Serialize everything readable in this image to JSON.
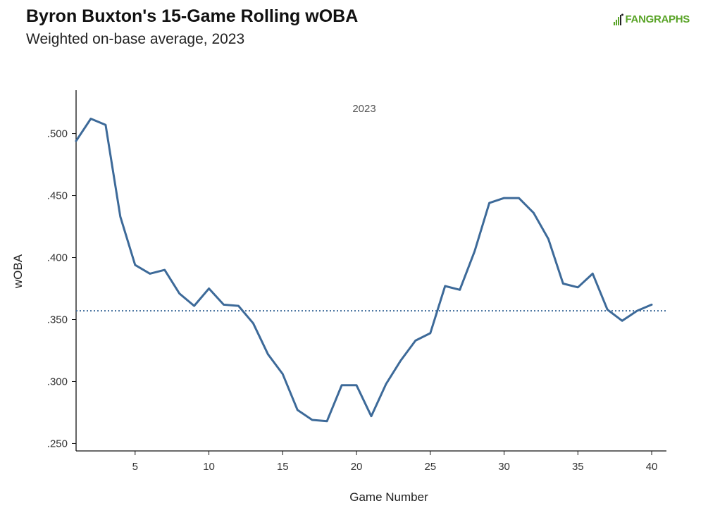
{
  "header": {
    "title": "Byron Buxton's 15-Game Rolling wOBA",
    "subtitle": "Weighted on-base average, 2023",
    "logo_text": "FANGRAPHS",
    "logo_color": "#5aa428"
  },
  "chart_data": {
    "type": "line",
    "panel_label": "2023",
    "xlabel": "Game Number",
    "ylabel": "wOBA",
    "xlim": [
      1,
      41
    ],
    "ylim": [
      0.244,
      0.535
    ],
    "x_ticks": [
      5,
      10,
      15,
      20,
      25,
      30,
      35,
      40
    ],
    "x_tick_labels": [
      "5",
      "10",
      "15",
      "20",
      "25",
      "30",
      "35",
      "40"
    ],
    "y_ticks": [
      0.25,
      0.3,
      0.35,
      0.4,
      0.45,
      0.5
    ],
    "y_tick_labels": [
      ".250",
      ".300",
      ".350",
      ".400",
      ".450",
      ".500"
    ],
    "grid": false,
    "line_color": "#3d6a99",
    "reference_line": {
      "y": 0.357,
      "style": "dotted",
      "color": "#3d6a99"
    },
    "series": [
      {
        "x": [
          1,
          2,
          3,
          4,
          5,
          6,
          7,
          8,
          9,
          10,
          11,
          12,
          13,
          14,
          15,
          16,
          17,
          18,
          19,
          20,
          21,
          22,
          23,
          24,
          25,
          26,
          27,
          28,
          29,
          30,
          31,
          32,
          33,
          34,
          35,
          36,
          37,
          38,
          39,
          40
        ],
        "values": [
          0.494,
          0.512,
          0.507,
          0.433,
          0.394,
          0.387,
          0.39,
          0.371,
          0.361,
          0.375,
          0.362,
          0.361,
          0.347,
          0.322,
          0.306,
          0.277,
          0.269,
          0.268,
          0.297,
          0.297,
          0.272,
          0.298,
          0.317,
          0.333,
          0.339,
          0.377,
          0.374,
          0.405,
          0.444,
          0.448,
          0.448,
          0.436,
          0.415,
          0.379,
          0.376,
          0.387,
          0.358,
          0.349,
          0.357,
          0.362
        ]
      }
    ]
  }
}
